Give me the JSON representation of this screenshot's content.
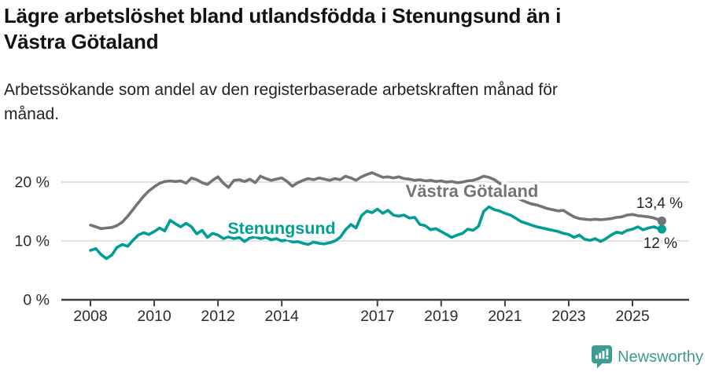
{
  "header": {
    "title": "Lägre arbetslöshet bland utlandsfödda i Stenungsund än i\nVästra Götaland",
    "subtitle": "Arbetssökande som andel av den registerbaserade arbetskraften månad för\nmånad."
  },
  "chart_data": {
    "type": "line",
    "title": "Lägre arbetslöshet bland utlandsfödda i Stenungsund än i Västra Götaland",
    "subtitle": "Arbetssökande som andel av den registerbaserade arbetskraften månad för månad.",
    "xlabel": "",
    "ylabel": "",
    "xlim": [
      2008,
      2026
    ],
    "ylim": [
      0,
      24
    ],
    "grid": "horizontal",
    "legend_position": "inline-labels",
    "x_axis": {
      "ticks": [
        {
          "year": 2008,
          "label": "2008"
        },
        {
          "year": 2010,
          "label": "2010"
        },
        {
          "year": 2012,
          "label": "2012"
        },
        {
          "year": 2014,
          "label": "2014"
        },
        {
          "year": 2017,
          "label": "2017"
        },
        {
          "year": 2019,
          "label": "2019"
        },
        {
          "year": 2021,
          "label": "2021"
        },
        {
          "year": 2023,
          "label": "2023"
        },
        {
          "year": 2025,
          "label": "2025"
        }
      ]
    },
    "y_axis": {
      "ticks": [
        {
          "value": 0,
          "label": "0 %"
        },
        {
          "value": 10,
          "label": "10 %"
        },
        {
          "value": 20,
          "label": "20 %"
        }
      ]
    },
    "x": [
      2008,
      2008.17,
      2008.33,
      2008.5,
      2008.67,
      2008.83,
      2009,
      2009.17,
      2009.33,
      2009.5,
      2009.67,
      2009.83,
      2010,
      2010.17,
      2010.33,
      2010.5,
      2010.67,
      2010.83,
      2011,
      2011.17,
      2011.33,
      2011.5,
      2011.67,
      2011.83,
      2012,
      2012.17,
      2012.33,
      2012.5,
      2012.67,
      2012.83,
      2013,
      2013.17,
      2013.33,
      2013.5,
      2013.67,
      2013.83,
      2014,
      2014.17,
      2014.33,
      2014.5,
      2014.67,
      2014.83,
      2015,
      2015.17,
      2015.33,
      2015.5,
      2015.67,
      2015.83,
      2016,
      2016.17,
      2016.33,
      2016.5,
      2016.67,
      2016.83,
      2017,
      2017.17,
      2017.33,
      2017.5,
      2017.67,
      2017.83,
      2018,
      2018.17,
      2018.33,
      2018.5,
      2018.67,
      2018.83,
      2019,
      2019.17,
      2019.33,
      2019.5,
      2019.67,
      2019.83,
      2020,
      2020.17,
      2020.33,
      2020.5,
      2020.67,
      2020.83,
      2021,
      2021.17,
      2021.33,
      2021.5,
      2021.67,
      2021.83,
      2022,
      2022.17,
      2022.33,
      2022.5,
      2022.67,
      2022.83,
      2023,
      2023.17,
      2023.33,
      2023.5,
      2023.67,
      2023.83,
      2024,
      2024.17,
      2024.33,
      2024.5,
      2024.67,
      2024.83,
      2025,
      2025.17,
      2025.33,
      2025.5,
      2025.67,
      2025.83,
      2025.92
    ],
    "series": [
      {
        "name": "Västra Götaland",
        "color": "#73737a",
        "end_label": "13,4 %",
        "last_value": 13.4,
        "values": [
          12.7,
          12.4,
          12.1,
          12.2,
          12.3,
          12.6,
          13.2,
          14.2,
          15.3,
          16.5,
          17.6,
          18.5,
          19.2,
          19.8,
          20.1,
          20.2,
          20.1,
          20.2,
          19.8,
          20.7,
          20.4,
          19.9,
          19.6,
          20.3,
          20.9,
          19.8,
          19.1,
          20.3,
          20.4,
          20.1,
          20.5,
          19.9,
          21.0,
          20.6,
          20.3,
          20.5,
          20.7,
          20.1,
          19.3,
          19.9,
          20.3,
          20.6,
          20.4,
          20.7,
          20.5,
          20.3,
          20.6,
          20.4,
          21.0,
          20.7,
          20.3,
          20.9,
          21.3,
          21.6,
          21.2,
          20.8,
          20.9,
          20.7,
          20.9,
          20.6,
          20.5,
          20.3,
          20.4,
          20.2,
          20.3,
          20.1,
          20.2,
          20.0,
          20.1,
          19.9,
          20.0,
          20.2,
          20.3,
          20.6,
          21.0,
          20.8,
          20.4,
          19.8,
          19.0,
          18.2,
          17.5,
          17.0,
          16.6,
          16.3,
          16.1,
          15.8,
          15.5,
          15.3,
          15.1,
          15.2,
          14.6,
          14.1,
          13.8,
          13.7,
          13.6,
          13.7,
          13.6,
          13.7,
          13.8,
          14.0,
          14.1,
          14.4,
          14.5,
          14.3,
          14.2,
          14.1,
          13.9,
          13.6,
          13.4
        ]
      },
      {
        "name": "Stenungsund",
        "color": "#009e94",
        "end_label": "12 %",
        "last_value": 12,
        "values": [
          8.4,
          8.7,
          7.7,
          7.0,
          7.6,
          8.9,
          9.4,
          9.1,
          10.1,
          11.0,
          11.4,
          11.1,
          11.6,
          12.2,
          11.7,
          13.5,
          12.9,
          12.4,
          13.0,
          12.4,
          11.2,
          11.8,
          10.6,
          11.3,
          11.0,
          10.4,
          10.7,
          10.4,
          10.6,
          9.9,
          10.5,
          10.7,
          10.4,
          10.6,
          10.2,
          10.4,
          10.0,
          10.2,
          9.8,
          9.9,
          9.6,
          9.4,
          9.8,
          9.6,
          9.5,
          9.7,
          10.0,
          10.6,
          11.9,
          12.8,
          12.2,
          14.3,
          15.1,
          14.8,
          15.4,
          14.7,
          15.2,
          14.4,
          14.2,
          14.4,
          13.9,
          14.0,
          12.8,
          12.6,
          11.9,
          12.1,
          11.6,
          11.1,
          10.6,
          11.0,
          11.3,
          12.0,
          11.8,
          12.5,
          15.0,
          15.8,
          15.3,
          15.1,
          14.7,
          14.4,
          13.9,
          13.3,
          13.0,
          12.7,
          12.4,
          12.2,
          12.0,
          11.8,
          11.6,
          11.3,
          11.1,
          10.6,
          11.0,
          10.3,
          10.1,
          10.4,
          9.9,
          10.4,
          11.0,
          11.5,
          11.3,
          11.8,
          12.0,
          12.4,
          11.9,
          12.2,
          12.4,
          12.1,
          12.0
        ]
      }
    ]
  },
  "footer": {
    "brand": "Newsworthy",
    "logo_color": "#3e9c92",
    "logo_icon": "bar-chart-speech-bubble-icon"
  },
  "colors": {
    "axis": "#3d3d3d",
    "grid": "#d9d9d9",
    "tick_text": "#2d2d2d",
    "annotation_text": "#1e1e1e"
  }
}
